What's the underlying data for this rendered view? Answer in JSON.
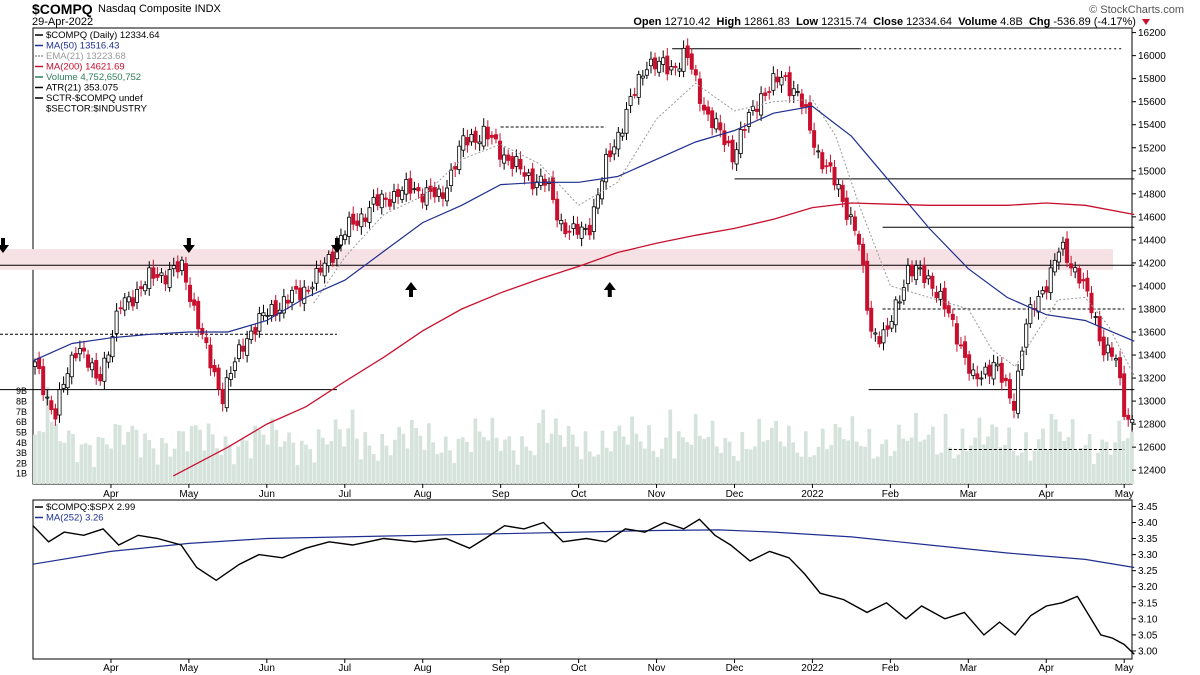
{
  "header": {
    "symbol": "$COMPQ",
    "name": "Nasdaq Composite INDX",
    "date": "29-Apr-2022",
    "brand": "© StockCharts.com",
    "open_label": "Open",
    "open": "12710.42",
    "high_label": "High",
    "high": "12861.83",
    "low_label": "Low",
    "low": "12315.74",
    "close_label": "Close",
    "close": "12334.64",
    "volume_label": "Volume",
    "volume": "4.8B",
    "chg_label": "Chg",
    "chg": "-536.89 (-4.17%)"
  },
  "legend": [
    {
      "text": "$COMPQ (Daily) 12334.64",
      "color": "#000000",
      "icon": "candle-icon"
    },
    {
      "text": "MA(50) 13516.43",
      "color": "#1f2f8f",
      "icon": "line-icon"
    },
    {
      "text": "EMA(21) 13223.68",
      "color": "#999999",
      "icon": "dotted-line-icon"
    },
    {
      "text": "MA(200) 14621.69",
      "color": "#c8102e",
      "icon": "line-icon"
    },
    {
      "text": "Volume 4,752,650,752",
      "color": "#2e7d5b",
      "icon": "volume-icon"
    },
    {
      "text": "ATR(21) 353.075",
      "color": "#000000",
      "icon": "line-icon"
    },
    {
      "text": "SCTR-$COMPQ undef",
      "color": "#000000",
      "icon": "line-icon"
    },
    {
      "text": "$SECTOR:$INDUSTRY",
      "color": "#000000",
      "icon": ""
    }
  ],
  "lower_legend": [
    {
      "text": "$COMPQ:$SPX 2.99",
      "color": "#000000",
      "icon": "line-icon"
    },
    {
      "text": "MA(252) 3.26",
      "color": "#1f2f8f",
      "icon": "line-icon"
    }
  ],
  "colors": {
    "down": "#c8102e",
    "up": "#000000",
    "volume": "#d5e3dc",
    "ma50": "#1f2f8f",
    "ma200": "#c8102e",
    "ema21": "#999999",
    "zone": "#f6e1e5"
  },
  "chart_data": [
    {
      "type": "candlestick",
      "title": "$COMPQ Nasdaq Composite INDX",
      "x_labels": [
        "Apr",
        "May",
        "Jun",
        "Jul",
        "Aug",
        "Sep",
        "Oct",
        "Nov",
        "Dec",
        "2022",
        "Feb",
        "Mar",
        "Apr",
        "May"
      ],
      "x_ticks_month_index": [
        1,
        2,
        3,
        4,
        5,
        6,
        7,
        8,
        9,
        10,
        11,
        12,
        13,
        14
      ],
      "x_range_months": [
        0,
        14.1
      ],
      "y_ticks": [
        12400,
        12600,
        12800,
        13000,
        13200,
        13400,
        13600,
        13800,
        14000,
        14200,
        14400,
        14600,
        14800,
        15000,
        15200,
        15400,
        15600,
        15800,
        16000,
        16200
      ],
      "ylim": [
        12280,
        16240
      ],
      "volume_ticks": [
        "1B",
        "2B",
        "3B",
        "4B",
        "5B",
        "6B",
        "7B",
        "8B",
        "9B"
      ],
      "volume_lim_b": [
        0,
        9.6
      ],
      "price_anchors": [
        [
          0,
          13300
        ],
        [
          0.25,
          12880
        ],
        [
          0.55,
          13520
        ],
        [
          0.8,
          13150
        ],
        [
          1.1,
          13820
        ],
        [
          1.5,
          14080
        ],
        [
          1.9,
          14150
        ],
        [
          2.2,
          13420
        ],
        [
          2.4,
          13050
        ],
        [
          2.7,
          13550
        ],
        [
          3.0,
          13780
        ],
        [
          3.3,
          13900
        ],
        [
          3.6,
          14050
        ],
        [
          3.95,
          14450
        ],
        [
          4.3,
          14680
        ],
        [
          4.55,
          14780
        ],
        [
          4.85,
          14850
        ],
        [
          5.2,
          14760
        ],
        [
          5.5,
          15250
        ],
        [
          5.75,
          15330
        ],
        [
          6.05,
          15120
        ],
        [
          6.3,
          14950
        ],
        [
          6.55,
          14900
        ],
        [
          6.75,
          14550
        ],
        [
          6.9,
          14450
        ],
        [
          7.1,
          14500
        ],
        [
          7.35,
          15100
        ],
        [
          7.6,
          15520
        ],
        [
          7.85,
          15950
        ],
        [
          8.15,
          15880
        ],
        [
          8.35,
          16020
        ],
        [
          8.6,
          15520
        ],
        [
          8.95,
          15150
        ],
        [
          9.3,
          15650
        ],
        [
          9.6,
          15820
        ],
        [
          9.8,
          15650
        ],
        [
          10.05,
          15150
        ],
        [
          10.3,
          14850
        ],
        [
          10.55,
          14450
        ],
        [
          10.72,
          13620
        ],
        [
          10.92,
          13550
        ],
        [
          11.2,
          14150
        ],
        [
          11.5,
          14050
        ],
        [
          11.85,
          13550
        ],
        [
          12.05,
          13150
        ],
        [
          12.3,
          13350
        ],
        [
          12.55,
          12950
        ],
        [
          12.7,
          13650
        ],
        [
          12.92,
          13950
        ],
        [
          13.15,
          14320
        ],
        [
          13.4,
          14100
        ],
        [
          13.55,
          13800
        ],
        [
          13.7,
          13480
        ],
        [
          13.85,
          13400
        ],
        [
          14.0,
          12820
        ],
        [
          14.08,
          12870
        ],
        [
          14.13,
          12330
        ]
      ],
      "ma50": [
        [
          0,
          13350
        ],
        [
          0.5,
          13500
        ],
        [
          1.0,
          13550
        ],
        [
          1.5,
          13580
        ],
        [
          2.0,
          13600
        ],
        [
          2.5,
          13600
        ],
        [
          3.0,
          13700
        ],
        [
          3.5,
          13900
        ],
        [
          4.0,
          14050
        ],
        [
          4.5,
          14300
        ],
        [
          5.0,
          14550
        ],
        [
          5.5,
          14700
        ],
        [
          6.0,
          14880
        ],
        [
          6.5,
          14900
        ],
        [
          7.0,
          14900
        ],
        [
          7.5,
          14950
        ],
        [
          8.0,
          15100
        ],
        [
          8.5,
          15250
        ],
        [
          9.0,
          15350
        ],
        [
          9.5,
          15500
        ],
        [
          10.0,
          15560
        ],
        [
          10.5,
          15300
        ],
        [
          11.0,
          14900
        ],
        [
          11.5,
          14500
        ],
        [
          12.0,
          14150
        ],
        [
          12.5,
          13900
        ],
        [
          13.0,
          13750
        ],
        [
          13.5,
          13700
        ],
        [
          14.13,
          13520
        ]
      ],
      "ma200": [
        [
          1.8,
          12350
        ],
        [
          2.5,
          12600
        ],
        [
          3.0,
          12800
        ],
        [
          3.5,
          12950
        ],
        [
          4.0,
          13170
        ],
        [
          4.5,
          13380
        ],
        [
          5.0,
          13610
        ],
        [
          5.5,
          13800
        ],
        [
          6.0,
          13940
        ],
        [
          6.5,
          14060
        ],
        [
          7.0,
          14170
        ],
        [
          7.5,
          14290
        ],
        [
          8.0,
          14370
        ],
        [
          8.5,
          14440
        ],
        [
          9.0,
          14500
        ],
        [
          9.5,
          14580
        ],
        [
          10.0,
          14680
        ],
        [
          10.5,
          14720
        ],
        [
          11.0,
          14710
        ],
        [
          11.5,
          14700
        ],
        [
          12.0,
          14700
        ],
        [
          12.5,
          14700
        ],
        [
          13.0,
          14720
        ],
        [
          13.5,
          14700
        ],
        [
          14.13,
          14620
        ]
      ],
      "ema21": [
        [
          3.6,
          13850
        ],
        [
          4.0,
          14250
        ],
        [
          4.5,
          14620
        ],
        [
          5.0,
          14780
        ],
        [
          5.5,
          15100
        ],
        [
          6.0,
          15230
        ],
        [
          6.5,
          15060
        ],
        [
          7.0,
          14700
        ],
        [
          7.5,
          14900
        ],
        [
          8.0,
          15450
        ],
        [
          8.5,
          15760
        ],
        [
          9.0,
          15520
        ],
        [
          9.5,
          15600
        ],
        [
          10.0,
          15620
        ],
        [
          10.3,
          15300
        ],
        [
          10.6,
          14700
        ],
        [
          11.0,
          14000
        ],
        [
          11.5,
          13900
        ],
        [
          12.0,
          13800
        ],
        [
          12.3,
          13450
        ],
        [
          12.6,
          13300
        ],
        [
          12.9,
          13620
        ],
        [
          13.15,
          13880
        ],
        [
          13.5,
          13900
        ],
        [
          13.8,
          13650
        ],
        [
          14.13,
          13220
        ]
      ],
      "annotations": {
        "resistance_zone": [
          14140,
          14320
        ],
        "horizontal_lines": [
          {
            "y": 13100,
            "from_month": 0,
            "to_month": 3.9,
            "style": "solid"
          },
          {
            "y": 13580,
            "from_month": 0,
            "to_month": 3.9,
            "style": "dashed"
          },
          {
            "y": 14180,
            "from_month": 0,
            "to_month": 14.13,
            "style": "solid"
          },
          {
            "y": 15380,
            "from_month": 6.0,
            "to_month": 7.35,
            "style": "dashed"
          },
          {
            "y": 16060,
            "from_month": 8.2,
            "to_month": 10.6,
            "style": "solid"
          },
          {
            "y": 16060,
            "from_month": 10.6,
            "to_month": 14.0,
            "style": "dotted"
          },
          {
            "y": 14930,
            "from_month": 9.0,
            "to_month": 14.13,
            "style": "solid"
          },
          {
            "y": 14510,
            "from_month": 10.9,
            "to_month": 14.13,
            "style": "solid"
          },
          {
            "y": 13800,
            "from_month": 10.9,
            "to_month": 14.0,
            "style": "dashed"
          },
          {
            "y": 13100,
            "from_month": 10.72,
            "to_month": 14.13,
            "style": "solid"
          },
          {
            "y": 12580,
            "from_month": 11.75,
            "to_month": 14.0,
            "style": "dashed"
          }
        ],
        "down_arrows_month": [
          0.0,
          2.0,
          3.9
        ],
        "up_arrows_month": [
          4.85,
          7.4
        ]
      }
    },
    {
      "type": "line",
      "title": "$COMPQ:$SPX 2.99",
      "x_labels": [
        "Apr",
        "May",
        "Jun",
        "Jul",
        "Aug",
        "Sep",
        "Oct",
        "Nov",
        "Dec",
        "2022",
        "Feb",
        "Mar",
        "Apr",
        "May"
      ],
      "y_ticks": [
        3.0,
        3.05,
        3.1,
        3.15,
        3.2,
        3.25,
        3.3,
        3.35,
        3.4,
        3.45
      ],
      "ylim": [
        2.975,
        3.47
      ],
      "series": [
        {
          "name": "$COMPQ:$SPX",
          "values": [
            [
              0,
              3.39
            ],
            [
              0.2,
              3.34
            ],
            [
              0.4,
              3.37
            ],
            [
              0.65,
              3.36
            ],
            [
              0.9,
              3.38
            ],
            [
              1.1,
              3.33
            ],
            [
              1.35,
              3.36
            ],
            [
              1.6,
              3.35
            ],
            [
              1.9,
              3.33
            ],
            [
              2.1,
              3.26
            ],
            [
              2.35,
              3.22
            ],
            [
              2.65,
              3.27
            ],
            [
              2.9,
              3.3
            ],
            [
              3.2,
              3.29
            ],
            [
              3.5,
              3.32
            ],
            [
              3.8,
              3.34
            ],
            [
              4.1,
              3.33
            ],
            [
              4.5,
              3.35
            ],
            [
              4.9,
              3.34
            ],
            [
              5.3,
              3.35
            ],
            [
              5.6,
              3.32
            ],
            [
              5.8,
              3.35
            ],
            [
              6.05,
              3.39
            ],
            [
              6.3,
              3.38
            ],
            [
              6.55,
              3.4
            ],
            [
              6.8,
              3.34
            ],
            [
              7.1,
              3.35
            ],
            [
              7.35,
              3.34
            ],
            [
              7.6,
              3.38
            ],
            [
              7.85,
              3.37
            ],
            [
              8.1,
              3.4
            ],
            [
              8.35,
              3.38
            ],
            [
              8.55,
              3.41
            ],
            [
              8.75,
              3.36
            ],
            [
              8.95,
              3.33
            ],
            [
              9.2,
              3.28
            ],
            [
              9.45,
              3.31
            ],
            [
              9.7,
              3.29
            ],
            [
              9.9,
              3.24
            ],
            [
              10.1,
              3.18
            ],
            [
              10.4,
              3.16
            ],
            [
              10.7,
              3.12
            ],
            [
              10.95,
              3.15
            ],
            [
              11.2,
              3.1
            ],
            [
              11.4,
              3.14
            ],
            [
              11.7,
              3.1
            ],
            [
              11.95,
              3.12
            ],
            [
              12.2,
              3.05
            ],
            [
              12.4,
              3.09
            ],
            [
              12.6,
              3.05
            ],
            [
              12.8,
              3.11
            ],
            [
              13.0,
              3.14
            ],
            [
              13.2,
              3.15
            ],
            [
              13.4,
              3.17
            ],
            [
              13.55,
              3.11
            ],
            [
              13.7,
              3.05
            ],
            [
              13.85,
              3.04
            ],
            [
              14.0,
              3.02
            ],
            [
              14.13,
              2.99
            ]
          ]
        },
        {
          "name": "MA(252)",
          "values": [
            [
              0,
              3.27
            ],
            [
              1.0,
              3.31
            ],
            [
              2.0,
              3.335
            ],
            [
              3.0,
              3.35
            ],
            [
              4.0,
              3.355
            ],
            [
              5.0,
              3.36
            ],
            [
              6.0,
              3.365
            ],
            [
              7.0,
              3.37
            ],
            [
              8.0,
              3.375
            ],
            [
              8.8,
              3.377
            ],
            [
              9.5,
              3.37
            ],
            [
              10.5,
              3.355
            ],
            [
              11.5,
              3.33
            ],
            [
              12.5,
              3.305
            ],
            [
              13.5,
              3.285
            ],
            [
              14.13,
              3.26
            ]
          ]
        }
      ]
    }
  ]
}
